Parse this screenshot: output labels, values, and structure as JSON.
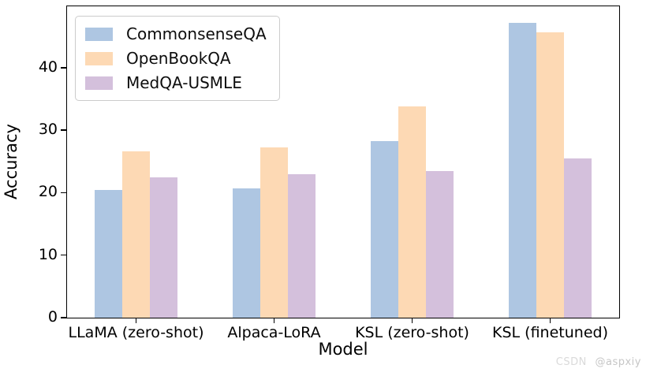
{
  "watermark": {
    "site": "CSDN",
    "user": "@aspxiy"
  },
  "chart_data": {
    "type": "bar",
    "title": "",
    "xlabel": "Model",
    "ylabel": "Accuracy",
    "categories": [
      "LLaMA (zero-shot)",
      "Alpaca-LoRA",
      "KSL (zero-shot)",
      "KSL (finetuned)"
    ],
    "series": [
      {
        "name": "CommonsenseQA",
        "color": "#aec6e2",
        "values": [
          20.4,
          20.7,
          28.2,
          47.2
        ]
      },
      {
        "name": "OpenBookQA",
        "color": "#fdd9b4",
        "values": [
          26.6,
          27.2,
          33.8,
          45.6
        ]
      },
      {
        "name": "MedQA-USMLE",
        "color": "#d4c0dc",
        "values": [
          22.5,
          23.0,
          23.4,
          25.5
        ]
      }
    ],
    "ylim": [
      0,
      49.8
    ],
    "yticks": [
      0,
      10,
      20,
      30,
      40
    ],
    "grid": false,
    "legend_position": "upper left",
    "bar_width_fraction": 0.2
  }
}
